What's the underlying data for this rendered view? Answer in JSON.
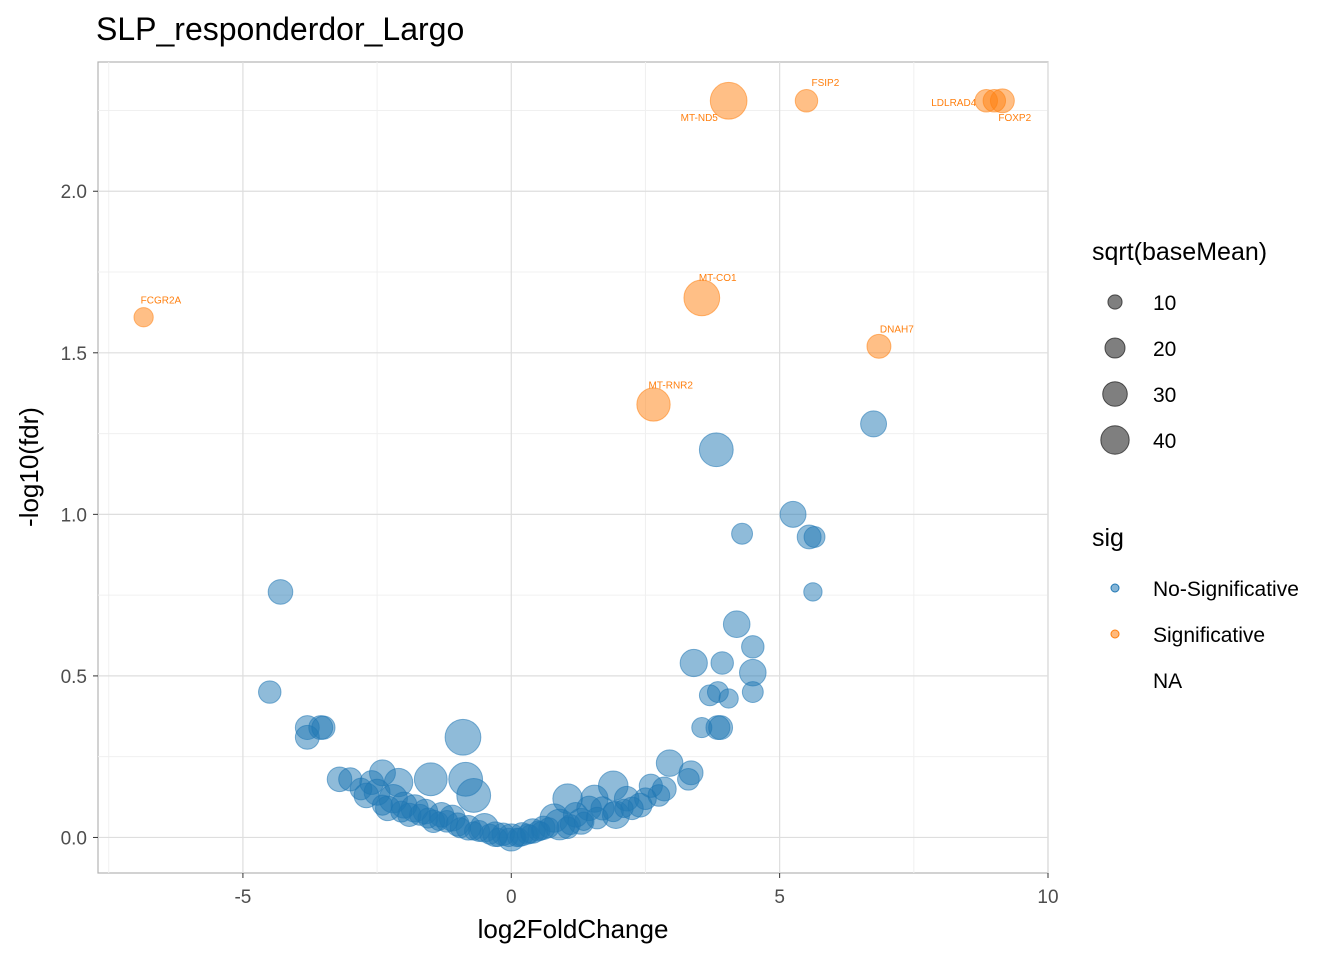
{
  "chart_data": {
    "type": "scatter",
    "title": "SLP_responderdor_Largo",
    "xlabel": "log2FoldChange",
    "ylabel": "-log10(fdr)",
    "xlim": [
      -7.7,
      10
    ],
    "ylim": [
      -0.11,
      2.4
    ],
    "x_ticks": [
      -5,
      0,
      5,
      10
    ],
    "x_tick_labels": [
      "-5",
      "0",
      "5",
      "10"
    ],
    "y_ticks": [
      0.0,
      0.5,
      1.0,
      1.5,
      2.0
    ],
    "y_tick_labels": [
      "0.0",
      "0.5",
      "1.0",
      "1.5",
      "2.0"
    ],
    "grid": true,
    "colors": {
      "No-Significative": "#1f77b4",
      "Significative": "#ff7f0e"
    },
    "size_legend": {
      "title": "sqrt(baseMean)",
      "values": [
        10,
        20,
        30,
        40
      ],
      "labels": [
        "10",
        "20",
        "30",
        "40"
      ]
    },
    "color_legend": {
      "title": "sig",
      "entries": [
        "No-Significative",
        "Significative",
        "NA"
      ]
    },
    "labeled_points": [
      {
        "label": "MT-ND5",
        "x": 4.05,
        "y": 2.28,
        "size": 40,
        "sig": "Significative"
      },
      {
        "label": "FSIP2",
        "x": 5.5,
        "y": 2.28,
        "size": 15,
        "sig": "Significative"
      },
      {
        "label": "LDLRAD4",
        "x": 8.85,
        "y": 2.28,
        "size": 15,
        "sig": "Significative"
      },
      {
        "label": "FOXP2",
        "x": 9.15,
        "y": 2.28,
        "size": 17,
        "sig": "Significative"
      },
      {
        "label": "MT-CO1",
        "x": 3.55,
        "y": 1.67,
        "size": 38,
        "sig": "Significative"
      },
      {
        "label": "FCGR2A",
        "x": -6.85,
        "y": 1.61,
        "size": 11,
        "sig": "Significative"
      },
      {
        "label": "DNAH7",
        "x": 6.85,
        "y": 1.52,
        "size": 17,
        "sig": "Significative"
      },
      {
        "label": "MT-RNR2",
        "x": 2.65,
        "y": 1.34,
        "size": 33,
        "sig": "Significative"
      }
    ],
    "unlabeled_sig_points": [
      {
        "x": 9.0,
        "y": 2.28,
        "size": 15
      }
    ],
    "points": [
      {
        "x": 6.75,
        "y": 1.28,
        "size": 20
      },
      {
        "x": 3.82,
        "y": 1.2,
        "size": 34
      },
      {
        "x": 5.25,
        "y": 1.0,
        "size": 20
      },
      {
        "x": 4.3,
        "y": 0.94,
        "size": 13
      },
      {
        "x": 5.55,
        "y": 0.93,
        "size": 17
      },
      {
        "x": 5.65,
        "y": 0.93,
        "size": 13
      },
      {
        "x": 5.62,
        "y": 0.76,
        "size": 10
      },
      {
        "x": -4.3,
        "y": 0.76,
        "size": 18
      },
      {
        "x": 4.2,
        "y": 0.66,
        "size": 21
      },
      {
        "x": 4.5,
        "y": 0.59,
        "size": 15
      },
      {
        "x": 3.4,
        "y": 0.54,
        "size": 22
      },
      {
        "x": 3.93,
        "y": 0.54,
        "size": 15
      },
      {
        "x": 4.5,
        "y": 0.51,
        "size": 21
      },
      {
        "x": -4.5,
        "y": 0.45,
        "size": 15
      },
      {
        "x": 3.7,
        "y": 0.44,
        "size": 13
      },
      {
        "x": 3.85,
        "y": 0.45,
        "size": 13
      },
      {
        "x": 4.5,
        "y": 0.45,
        "size": 13
      },
      {
        "x": 4.05,
        "y": 0.43,
        "size": 11
      },
      {
        "x": -3.8,
        "y": 0.34,
        "size": 17
      },
      {
        "x": -3.8,
        "y": 0.31,
        "size": 17
      },
      {
        "x": -3.55,
        "y": 0.34,
        "size": 17
      },
      {
        "x": -3.5,
        "y": 0.34,
        "size": 16
      },
      {
        "x": 3.55,
        "y": 0.34,
        "size": 12
      },
      {
        "x": 3.85,
        "y": 0.34,
        "size": 17
      },
      {
        "x": 3.9,
        "y": 0.34,
        "size": 17
      },
      {
        "x": -0.9,
        "y": 0.31,
        "size": 38
      },
      {
        "x": 2.95,
        "y": 0.23,
        "size": 21
      },
      {
        "x": 3.35,
        "y": 0.2,
        "size": 17
      },
      {
        "x": 3.3,
        "y": 0.18,
        "size": 14
      },
      {
        "x": -2.4,
        "y": 0.2,
        "size": 20
      },
      {
        "x": -1.5,
        "y": 0.18,
        "size": 32
      },
      {
        "x": -0.85,
        "y": 0.18,
        "size": 34
      },
      {
        "x": -0.7,
        "y": 0.13,
        "size": 34
      },
      {
        "x": -2.1,
        "y": 0.17,
        "size": 24
      },
      {
        "x": -3.2,
        "y": 0.18,
        "size": 18
      },
      {
        "x": -3.0,
        "y": 0.18,
        "size": 16
      },
      {
        "x": -2.6,
        "y": 0.17,
        "size": 17
      },
      {
        "x": -2.8,
        "y": 0.15,
        "size": 14
      },
      {
        "x": 1.9,
        "y": 0.16,
        "size": 26
      },
      {
        "x": 2.6,
        "y": 0.16,
        "size": 16
      },
      {
        "x": 2.85,
        "y": 0.15,
        "size": 17
      },
      {
        "x": 2.75,
        "y": 0.13,
        "size": 14
      },
      {
        "x": 1.05,
        "y": 0.12,
        "size": 26
      },
      {
        "x": 1.55,
        "y": 0.12,
        "size": 22
      },
      {
        "x": 2.15,
        "y": 0.12,
        "size": 18
      },
      {
        "x": 2.4,
        "y": 0.1,
        "size": 17
      },
      {
        "x": 2.5,
        "y": 0.12,
        "size": 14
      },
      {
        "x": -2.5,
        "y": 0.14,
        "size": 20
      },
      {
        "x": -2.7,
        "y": 0.13,
        "size": 18
      },
      {
        "x": -2.2,
        "y": 0.12,
        "size": 24
      },
      {
        "x": -2.0,
        "y": 0.1,
        "size": 20
      },
      {
        "x": -1.8,
        "y": 0.09,
        "size": 22
      },
      {
        "x": -1.6,
        "y": 0.08,
        "size": 18
      },
      {
        "x": -2.3,
        "y": 0.09,
        "size": 18
      },
      {
        "x": -1.9,
        "y": 0.07,
        "size": 16
      },
      {
        "x": -1.3,
        "y": 0.07,
        "size": 18
      },
      {
        "x": -1.1,
        "y": 0.06,
        "size": 20
      },
      {
        "x": -0.5,
        "y": 0.03,
        "size": 24
      },
      {
        "x": 0.8,
        "y": 0.06,
        "size": 24
      },
      {
        "x": 0.9,
        "y": 0.04,
        "size": 28
      },
      {
        "x": 1.3,
        "y": 0.05,
        "size": 20
      },
      {
        "x": 1.7,
        "y": 0.09,
        "size": 16
      },
      {
        "x": 1.95,
        "y": 0.07,
        "size": 22
      },
      {
        "x": 2.25,
        "y": 0.09,
        "size": 15
      },
      {
        "x": 1.2,
        "y": 0.07,
        "size": 18
      },
      {
        "x": 1.45,
        "y": 0.09,
        "size": 18
      },
      {
        "x": -1.45,
        "y": 0.05,
        "size": 15
      },
      {
        "x": -1.0,
        "y": 0.04,
        "size": 16
      },
      {
        "x": -0.8,
        "y": 0.03,
        "size": 18
      },
      {
        "x": -0.3,
        "y": 0.01,
        "size": 18
      },
      {
        "x": 0.0,
        "y": 0.0,
        "size": 22
      },
      {
        "x": 0.2,
        "y": 0.01,
        "size": 16
      },
      {
        "x": 0.4,
        "y": 0.02,
        "size": 18
      },
      {
        "x": 0.6,
        "y": 0.03,
        "size": 16
      },
      {
        "x": 1.05,
        "y": 0.03,
        "size": 14
      },
      {
        "x": 1.6,
        "y": 0.06,
        "size": 14
      },
      {
        "x": -0.15,
        "y": 0.01,
        "size": 15
      },
      {
        "x": -0.6,
        "y": 0.02,
        "size": 13
      },
      {
        "x": -1.2,
        "y": 0.05,
        "size": 14
      },
      {
        "x": -1.7,
        "y": 0.07,
        "size": 13
      },
      {
        "x": -2.05,
        "y": 0.08,
        "size": 13
      },
      {
        "x": 0.3,
        "y": 0.01,
        "size": 12
      },
      {
        "x": 0.5,
        "y": 0.02,
        "size": 12
      },
      {
        "x": 0.7,
        "y": 0.03,
        "size": 12
      },
      {
        "x": 1.1,
        "y": 0.04,
        "size": 12
      },
      {
        "x": 1.9,
        "y": 0.08,
        "size": 12
      },
      {
        "x": -0.4,
        "y": 0.01,
        "size": 12
      },
      {
        "x": -0.95,
        "y": 0.03,
        "size": 12
      },
      {
        "x": -1.55,
        "y": 0.06,
        "size": 12
      },
      {
        "x": -2.4,
        "y": 0.1,
        "size": 12
      },
      {
        "x": 0.1,
        "y": 0.0,
        "size": 10
      },
      {
        "x": -0.05,
        "y": 0.0,
        "size": 10
      },
      {
        "x": 0.15,
        "y": 0.0,
        "size": 10
      },
      {
        "x": -0.25,
        "y": 0.0,
        "size": 10
      },
      {
        "x": 0.35,
        "y": 0.01,
        "size": 10
      },
      {
        "x": 0.55,
        "y": 0.02,
        "size": 10
      },
      {
        "x": -0.7,
        "y": 0.02,
        "size": 10
      },
      {
        "x": -1.35,
        "y": 0.05,
        "size": 10
      },
      {
        "x": 1.35,
        "y": 0.05,
        "size": 10
      },
      {
        "x": 2.1,
        "y": 0.09,
        "size": 10
      }
    ]
  }
}
